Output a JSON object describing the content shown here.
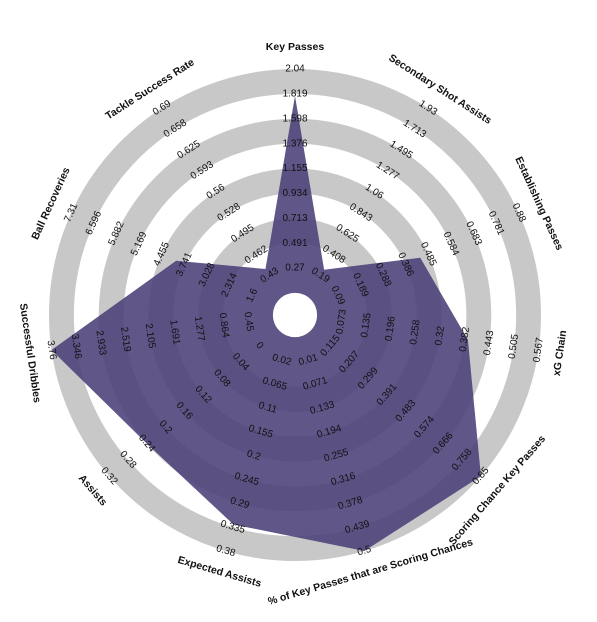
{
  "chart_data": {
    "type": "radar",
    "categories": [
      "Key Passes",
      "Secondary Shot Assists",
      "Establishing Passes",
      "xG Chain",
      "Scoring Chance Key Passes",
      "% of Key Passes that are Scoring Chances",
      "Expected Assists",
      "Assists",
      "Successful Dribbles",
      "Ball Recoveries",
      "Tackle Success Rate"
    ],
    "values": [
      1.8,
      0.25,
      0.45,
      0.39,
      0.85,
      0.5,
      0.33,
      0.24,
      3.76,
      4.0,
      0.44
    ],
    "color": "#4a3f78",
    "ranges": [
      [
        0.27,
        2.04
      ],
      [
        0.19,
        1.93
      ],
      [
        0.09,
        0.88
      ],
      [
        0.073,
        0.567
      ],
      [
        0.115,
        0.85
      ],
      [
        0.01,
        0.5
      ],
      [
        0.02,
        0.38
      ],
      [
        0,
        0.32
      ],
      [
        0.45,
        3.76
      ],
      [
        1.6,
        7.31
      ],
      [
        0.43,
        0.69
      ]
    ],
    "ticks": [
      [
        0.27,
        0.491,
        0.713,
        0.934,
        1.155,
        1.376,
        1.598,
        1.819,
        2.04
      ],
      [
        0.19,
        0.408,
        0.625,
        0.843,
        1.06,
        1.277,
        1.495,
        1.713,
        1.93
      ],
      [
        0.09,
        0.189,
        0.288,
        0.386,
        0.485,
        0.584,
        0.683,
        0.781,
        0.88
      ],
      [
        0.073,
        0.135,
        0.196,
        0.258,
        0.32,
        0.382,
        0.443,
        0.505,
        0.567
      ],
      [
        0.115,
        0.207,
        0.299,
        0.391,
        0.483,
        0.574,
        0.666,
        0.758,
        0.85
      ],
      [
        0.01,
        0.071,
        0.133,
        0.194,
        0.255,
        0.316,
        0.378,
        0.439,
        0.5
      ],
      [
        0.02,
        0.065,
        0.11,
        0.155,
        0.2,
        0.245,
        0.29,
        0.335,
        0.38
      ],
      [
        0,
        0.04,
        0.08,
        0.12,
        0.16,
        0.2,
        0.24,
        0.28,
        0.32
      ],
      [
        0.45,
        0.864,
        1.277,
        1.691,
        2.105,
        2.519,
        2.933,
        3.346,
        3.76
      ],
      [
        1.6,
        2.314,
        3.028,
        3.741,
        4.455,
        5.169,
        5.882,
        6.596,
        7.31
      ],
      [
        0.43,
        0.462,
        0.495,
        0.528,
        0.56,
        0.593,
        0.625,
        0.658,
        0.69
      ]
    ]
  }
}
